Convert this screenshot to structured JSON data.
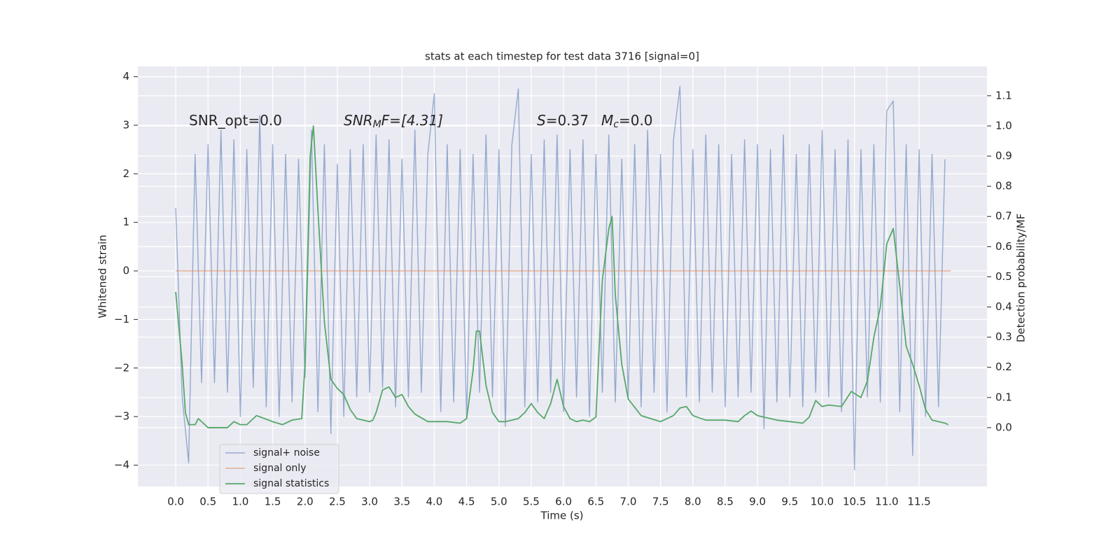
{
  "chart_data": {
    "type": "line",
    "title": "stats at each timestep for test data 3716 [signal=0]",
    "xlabel": "Time (s)",
    "ylabel": "Whitened strain",
    "y2label": "Detection probability/MF",
    "annotations": [
      [
        "SNR_opt=0.0"
      ],
      [
        "SNR",
        "M",
        "F=[4.31]"
      ],
      [
        "S",
        "=0.37"
      ],
      [
        "M",
        "c",
        "=0.0"
      ]
    ],
    "xlim": [
      -0.585,
      12.55
    ],
    "ylim": [
      -4.44,
      4.21
    ],
    "y2lim": [
      -0.195,
      1.197
    ],
    "xticks": [
      {
        "value": 0,
        "label": "0.0"
      },
      0.5,
      {
        "value": 1,
        "label": "1.0"
      },
      1.5,
      {
        "value": 2,
        "label": "2.0"
      },
      2.5,
      {
        "value": 3,
        "label": "3.0"
      },
      3.5,
      {
        "value": 4,
        "label": "4.0"
      },
      4.5,
      {
        "value": 5,
        "label": "5.0"
      },
      5.5,
      {
        "value": 6,
        "label": "6.0"
      },
      6.5,
      {
        "value": 7,
        "label": "7.0"
      },
      7.5,
      {
        "value": 8,
        "label": "8.0"
      },
      8.5,
      {
        "value": 9,
        "label": "9.0"
      },
      9.5,
      {
        "value": 10,
        "label": "10.0"
      },
      10.5,
      {
        "value": 11,
        "label": "11.0"
      },
      11.5
    ],
    "yticks": [
      {
        "value": -4,
        "label": "−4"
      },
      {
        "value": -3,
        "label": "−3"
      },
      {
        "value": -2,
        "label": "−2"
      },
      {
        "value": -1,
        "label": "−1"
      },
      0,
      1,
      2,
      3,
      4
    ],
    "y2ticks": [
      {
        "value": 0,
        "label": "0.0"
      },
      0.1,
      0.2,
      0.3,
      0.4,
      0.5,
      0.6,
      0.7,
      0.8,
      0.9,
      {
        "value": 1,
        "label": "1.0"
      },
      1.1
    ],
    "grid": true,
    "legend": "lower left",
    "series": [
      {
        "name": "signal+ noise",
        "color": "#4c72b0",
        "x": [
          0,
          0.1,
          0.2,
          0.3,
          0.4,
          0.5,
          0.6,
          0.7,
          0.8,
          0.9,
          1,
          1.1,
          1.2,
          1.3,
          1.4,
          1.5,
          1.6,
          1.7,
          1.8,
          1.9,
          2,
          2.1,
          2.2,
          2.3,
          2.4,
          2.5,
          2.6,
          2.7,
          2.8,
          2.9,
          3,
          3.1,
          3.2,
          3.3,
          3.4,
          3.5,
          3.6,
          3.7,
          3.8,
          3.9,
          4,
          4.1,
          4.2,
          4.3,
          4.4,
          4.5,
          4.6,
          4.7,
          4.8,
          4.9,
          5,
          5.1,
          5.2,
          5.3,
          5.4,
          5.5,
          5.6,
          5.7,
          5.8,
          5.9,
          6,
          6.1,
          6.2,
          6.3,
          6.4,
          6.5,
          6.6,
          6.7,
          6.8,
          6.9,
          7,
          7.1,
          7.2,
          7.3,
          7.4,
          7.5,
          7.6,
          7.7,
          7.8,
          7.9,
          8,
          8.1,
          8.2,
          8.3,
          8.4,
          8.5,
          8.6,
          8.7,
          8.8,
          8.9,
          9,
          9.1,
          9.2,
          9.3,
          9.4,
          9.5,
          9.6,
          9.7,
          9.8,
          9.9,
          10,
          10.1,
          10.2,
          10.3,
          10.4,
          10.5,
          10.6,
          10.7,
          10.8,
          10.9,
          11,
          11.1,
          11.2,
          11.3,
          11.4,
          11.5,
          11.6,
          11.7,
          11.8,
          11.9
        ],
        "values": [
          1.3,
          -2.6,
          -3.95,
          2.4,
          -2.3,
          2.6,
          -2.3,
          2.9,
          -2.5,
          2.7,
          -3.0,
          2.5,
          -2.4,
          3.2,
          -2.8,
          2.6,
          -3.0,
          2.4,
          -2.7,
          2.3,
          -2.2,
          2.9,
          -2.9,
          2.6,
          -3.35,
          2.2,
          -3.0,
          2.5,
          -2.6,
          2.6,
          -2.5,
          2.8,
          -2.4,
          2.7,
          -2.8,
          2.3,
          -2.6,
          2.9,
          -2.5,
          2.4,
          3.65,
          -2.9,
          2.6,
          -2.7,
          2.5,
          -3.0,
          2.4,
          -2.5,
          2.8,
          -2.6,
          2.5,
          -3.2,
          2.6,
          3.75,
          -2.8,
          2.4,
          -2.7,
          2.7,
          -2.5,
          2.8,
          -2.9,
          2.5,
          -2.6,
          2.7,
          -3.0,
          2.4,
          -2.5,
          2.8,
          -2.7,
          2.3,
          -2.6,
          2.6,
          -2.8,
          2.9,
          -2.5,
          2.4,
          -2.9,
          2.7,
          3.8,
          -2.6,
          2.5,
          -2.7,
          2.8,
          -2.5,
          2.6,
          -2.8,
          2.4,
          -2.6,
          2.7,
          -2.5,
          2.6,
          -3.25,
          2.5,
          -2.7,
          2.8,
          -2.6,
          2.4,
          -2.8,
          2.6,
          -2.5,
          2.9,
          -2.6,
          2.5,
          -2.9,
          2.7,
          -4.1,
          2.5,
          -2.6,
          2.6,
          -2.7,
          3.3,
          3.5,
          -2.9,
          2.6,
          -3.8,
          2.5,
          -3.0,
          2.4,
          -2.8,
          2.3
        ]
      },
      {
        "name": "signal only",
        "color": "#dd8452",
        "x": [
          0,
          11.99
        ],
        "values": [
          0,
          0
        ]
      },
      {
        "name": "signal statistics",
        "color": "#55a868",
        "axis": "y2",
        "x": [
          0,
          0.1,
          0.15,
          0.2,
          0.3,
          0.35,
          0.5,
          0.8,
          0.9,
          1.0,
          1.1,
          1.25,
          1.5,
          1.65,
          1.8,
          1.95,
          2.0,
          2.08,
          2.13,
          2.2,
          2.3,
          2.4,
          2.5,
          2.6,
          2.7,
          2.8,
          3.0,
          3.05,
          3.1,
          3.2,
          3.3,
          3.4,
          3.5,
          3.6,
          3.7,
          3.9,
          4.2,
          4.4,
          4.5,
          4.6,
          4.65,
          4.7,
          4.8,
          4.9,
          5.0,
          5.1,
          5.3,
          5.4,
          5.5,
          5.6,
          5.7,
          5.8,
          5.9,
          6.0,
          6.1,
          6.2,
          6.3,
          6.4,
          6.5,
          6.6,
          6.7,
          6.75,
          6.8,
          6.9,
          7.0,
          7.2,
          7.5,
          7.7,
          7.8,
          7.9,
          8.0,
          8.2,
          8.5,
          8.7,
          8.8,
          8.9,
          9.0,
          9.3,
          9.5,
          9.7,
          9.8,
          9.9,
          10.0,
          10.1,
          10.3,
          10.45,
          10.6,
          10.7,
          10.8,
          10.9,
          11.0,
          11.1,
          11.2,
          11.3,
          11.4,
          11.5,
          11.6,
          11.7,
          11.9,
          11.95
        ],
        "values": [
          0.45,
          0.21,
          0.05,
          0.01,
          0.01,
          0.03,
          0.0,
          0.0,
          0.02,
          0.01,
          0.01,
          0.04,
          0.02,
          0.01,
          0.025,
          0.03,
          0.21,
          0.9,
          1.0,
          0.72,
          0.35,
          0.16,
          0.13,
          0.11,
          0.06,
          0.03,
          0.02,
          0.025,
          0.05,
          0.125,
          0.135,
          0.1,
          0.11,
          0.07,
          0.045,
          0.02,
          0.02,
          0.015,
          0.03,
          0.19,
          0.32,
          0.32,
          0.14,
          0.05,
          0.02,
          0.02,
          0.03,
          0.05,
          0.08,
          0.05,
          0.03,
          0.08,
          0.16,
          0.07,
          0.03,
          0.02,
          0.025,
          0.02,
          0.035,
          0.49,
          0.66,
          0.7,
          0.44,
          0.21,
          0.095,
          0.04,
          0.02,
          0.04,
          0.065,
          0.07,
          0.04,
          0.025,
          0.025,
          0.02,
          0.04,
          0.055,
          0.04,
          0.025,
          0.02,
          0.015,
          0.035,
          0.09,
          0.07,
          0.075,
          0.07,
          0.12,
          0.1,
          0.155,
          0.3,
          0.4,
          0.61,
          0.66,
          0.47,
          0.27,
          0.21,
          0.14,
          0.06,
          0.025,
          0.015,
          0.01
        ]
      }
    ]
  }
}
